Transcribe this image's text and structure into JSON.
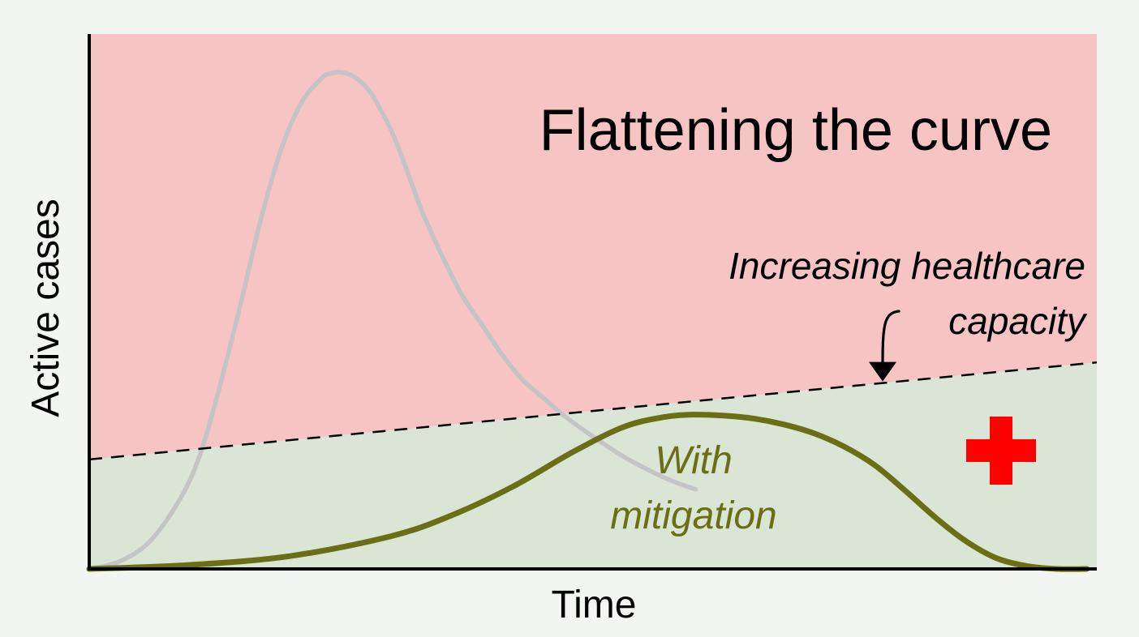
{
  "chart_data": {
    "type": "line",
    "title": "Flattening the curve",
    "xlabel": "Time",
    "ylabel": "Active cases",
    "xlim": [
      0,
      100
    ],
    "ylim": [
      0,
      100
    ],
    "grid": false,
    "regions": [
      {
        "name": "over_capacity",
        "color": "#f5c4c3"
      },
      {
        "name": "under_capacity",
        "color": "#dbe5d5"
      }
    ],
    "series": [
      {
        "name": "",
        "color": "#c4c4c4",
        "x": [
          0,
          3,
          6,
          9,
          11,
          13,
          15,
          17,
          19,
          21,
          23,
          24,
          25,
          26,
          27,
          28,
          29,
          30,
          31,
          32,
          33,
          35,
          37,
          39,
          41,
          43,
          45,
          47,
          49,
          51,
          53,
          55,
          57,
          59,
          60.2
        ],
        "y": [
          0,
          1.5,
          5.5,
          14,
          23,
          37,
          53,
          70,
          84,
          93.5,
          98.5,
          99.6,
          99.8,
          99.2,
          97.8,
          95.5,
          92,
          88,
          83,
          77.5,
          72,
          63,
          55,
          49,
          43,
          38,
          34.5,
          31,
          28,
          25.2,
          22.6,
          20.4,
          18.4,
          16.8,
          16
        ]
      },
      {
        "name": "With mitigation",
        "label_lines": [
          "With",
          "mitigation"
        ],
        "color": "#6a6e14",
        "x": [
          0,
          10,
          20,
          30,
          36,
          42,
          48,
          53,
          57,
          60,
          63,
          66,
          69,
          72,
          75,
          78,
          81,
          84,
          87,
          90,
          93,
          96,
          99
        ],
        "y": [
          0,
          0.8,
          2.6,
          6.6,
          10.8,
          16.5,
          23.5,
          28.5,
          30.5,
          31,
          30.8,
          30.2,
          29,
          27.2,
          24.5,
          20.8,
          15.7,
          10.3,
          5.6,
          2.2,
          0.6,
          0,
          0
        ]
      }
    ],
    "capacity_line": {
      "label_lines": [
        "Increasing healthcare",
        "capacity"
      ],
      "x": [
        0,
        100
      ],
      "y": [
        22,
        41.5
      ]
    },
    "icon": {
      "name": "medical-cross-icon",
      "color": "#ff0000"
    }
  }
}
